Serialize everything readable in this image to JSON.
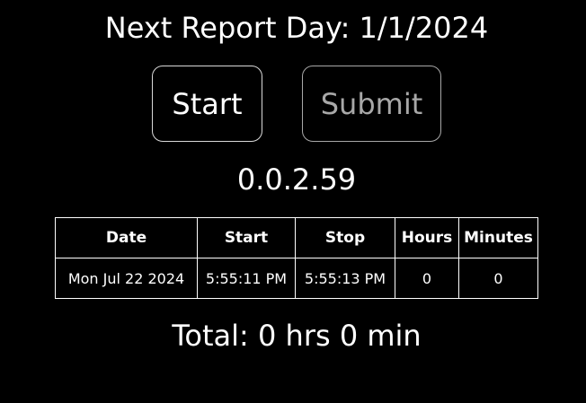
{
  "header": {
    "title": "Next Report Day: 1/1/2024"
  },
  "buttons": {
    "start_label": "Start",
    "submit_label": "Submit",
    "submit_disabled": true
  },
  "version": "0.0.2.59",
  "table": {
    "columns": [
      "Date",
      "Start",
      "Stop",
      "Hours",
      "Minutes"
    ],
    "rows": [
      [
        "Mon Jul 22 2024",
        "5:55:11 PM",
        "5:55:13 PM",
        "0",
        "0"
      ]
    ]
  },
  "total": "Total: 0 hrs 0 min",
  "colors": {
    "background": "#000000",
    "text": "#ffffff",
    "disabled_text": "#a8a8a8",
    "border": "#ffffff"
  }
}
